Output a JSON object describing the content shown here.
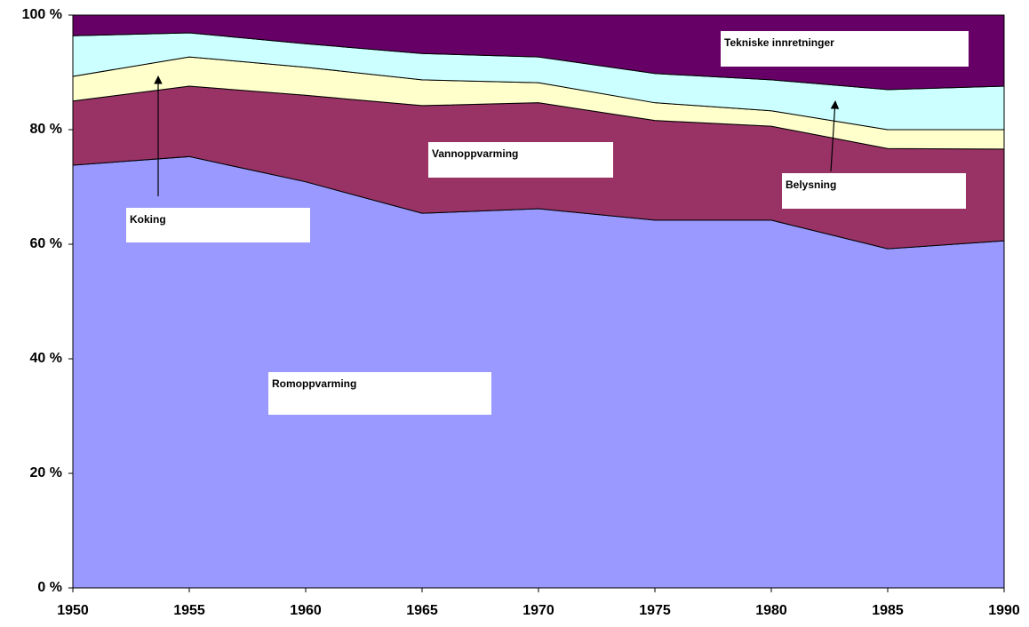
{
  "chart_data": {
    "type": "stacked_area",
    "x": [
      1950,
      1955,
      1960,
      1965,
      1970,
      1975,
      1980,
      1985,
      1990
    ],
    "xlim": [
      1950,
      1990
    ],
    "xticks": [
      1950,
      1955,
      1960,
      1965,
      1970,
      1975,
      1980,
      1985,
      1990
    ],
    "ylim": [
      0,
      100
    ],
    "yticks": [
      {
        "value": 0,
        "label": "0 %"
      },
      {
        "value": 20,
        "label": "20 %"
      },
      {
        "value": 40,
        "label": "40 %"
      },
      {
        "value": 60,
        "label": "60 %"
      },
      {
        "value": 80,
        "label": "80 %"
      },
      {
        "value": 100,
        "label": "100 %"
      }
    ],
    "series": [
      {
        "name": "Romoppvarming",
        "color": "#9999ff",
        "values": [
          73.8,
          75.3,
          70.9,
          65.4,
          66.2,
          64.2,
          64.2,
          59.2,
          60.6
        ]
      },
      {
        "name": "Vannoppvarming",
        "color": "#993366",
        "values": [
          11.2,
          12.3,
          15.1,
          18.8,
          18.5,
          17.4,
          16.4,
          17.5,
          16.0
        ]
      },
      {
        "name": "Koking",
        "color": "#ffffcc",
        "values": [
          4.3,
          5.1,
          4.9,
          4.5,
          3.5,
          3.1,
          2.7,
          3.3,
          3.4
        ]
      },
      {
        "name": "Belysning",
        "color": "#ccffff",
        "values": [
          7.1,
          4.2,
          4.1,
          4.6,
          4.5,
          5.1,
          5.4,
          7.0,
          7.6
        ]
      },
      {
        "name": "Tekniske innretninger",
        "color": "#660066",
        "values": [
          3.6,
          3.1,
          5.0,
          6.7,
          7.3,
          10.2,
          11.3,
          13.0,
          12.4
        ]
      }
    ]
  }
}
